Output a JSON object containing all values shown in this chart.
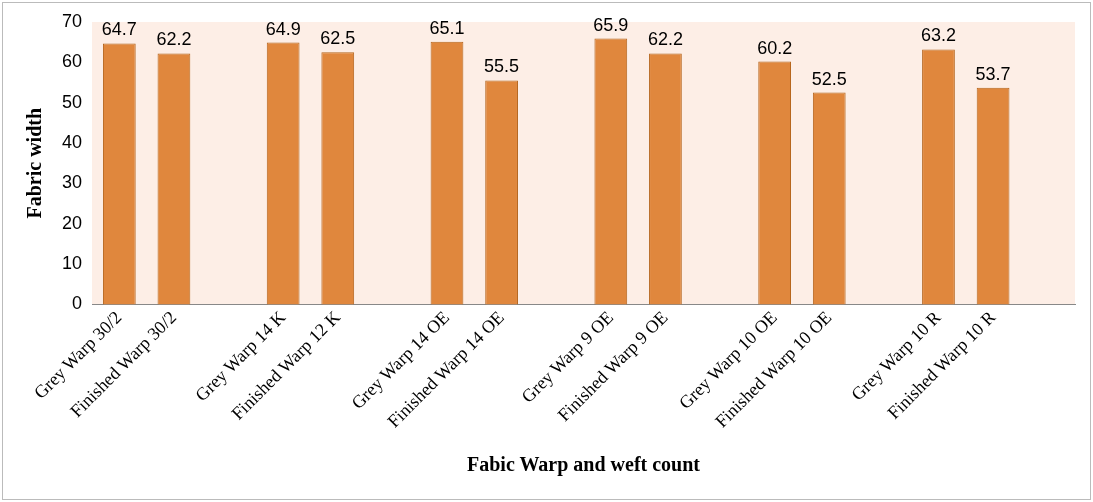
{
  "chart_data": {
    "type": "bar",
    "xlabel": "Fabic Warp and weft count",
    "ylabel": "Fabric width",
    "categories": [
      "Grey Warp 30/2",
      "Finished Warp 30/2",
      null,
      "Grey Warp 14 K",
      "Finished Warp 12 K",
      null,
      "Grey Warp 14 OE",
      "Finished Warp 14 OE",
      null,
      "Grey Warp 9 OE",
      "Finished Warp 9 OE",
      null,
      "Grey Warp 10 OE",
      "Finished Warp 10 OE",
      null,
      "Grey Warp 10 R",
      "Finished Warp 10 R",
      null
    ],
    "values": [
      64.7,
      62.2,
      null,
      64.9,
      62.5,
      null,
      65.1,
      55.5,
      null,
      65.9,
      62.2,
      null,
      60.2,
      52.5,
      null,
      63.2,
      53.7,
      null
    ],
    "color": "#e0873d",
    "ylim": [
      0,
      70
    ],
    "yticks": [
      0,
      10,
      20,
      30,
      40,
      50,
      60,
      70
    ],
    "grid": false,
    "legend": false,
    "data_labels": true
  }
}
